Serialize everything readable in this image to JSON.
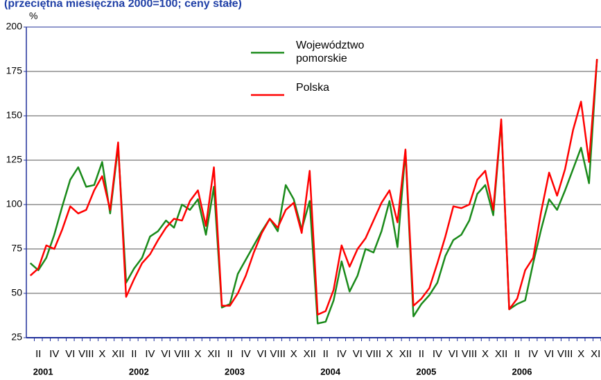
{
  "chart_data": {
    "type": "line",
    "title": "(przeciętna miesięczna 2000=100; ceny stałe)",
    "y_label": "%",
    "categories": [
      null,
      "II",
      null,
      "IV",
      null,
      "VI",
      null,
      "VIII",
      null,
      "X",
      null,
      "XII",
      null,
      "II",
      null,
      "IV",
      null,
      "VI",
      null,
      "VIII",
      null,
      "X",
      null,
      "XII",
      null,
      "II",
      null,
      "IV",
      null,
      "VI",
      null,
      "VIII",
      null,
      "X",
      null,
      "XII",
      null,
      "II",
      null,
      "IV",
      null,
      "VI",
      null,
      "VIII",
      null,
      "X",
      null,
      "XII",
      null,
      "II",
      null,
      "IV",
      null,
      "VI",
      null,
      "VIII",
      null,
      "X",
      null,
      "XII",
      null,
      "II",
      null,
      "IV",
      null,
      "VI",
      null,
      "VIII",
      null,
      "X",
      null,
      "XII"
    ],
    "years": [
      "2001",
      "2002",
      "2003",
      "2004",
      "2005",
      "2006"
    ],
    "series": [
      {
        "name": "Województwo pomorskie",
        "color": "#1a8a1a",
        "values": [
          67,
          63,
          70,
          83,
          99,
          114,
          121,
          110,
          111,
          124,
          95,
          133,
          56,
          64,
          70,
          82,
          85,
          91,
          87,
          100,
          97,
          103,
          83,
          110,
          42,
          44,
          61,
          69,
          77,
          85,
          92,
          85,
          111,
          103,
          86,
          102,
          33,
          34,
          46,
          68,
          51,
          60,
          75,
          73,
          85,
          102,
          76,
          130,
          37,
          44,
          49,
          56,
          71,
          80,
          83,
          91,
          106,
          111,
          94,
          147,
          41,
          44,
          46,
          67,
          86,
          103,
          97,
          108,
          120,
          132,
          112,
          182
        ]
      },
      {
        "name": "Polska",
        "color": "#ff0000",
        "values": [
          60,
          64,
          77,
          75,
          86,
          99,
          95,
          97,
          108,
          116,
          97,
          135,
          48,
          58,
          67,
          72,
          80,
          87,
          92,
          91,
          102,
          108,
          88,
          121,
          43,
          43,
          50,
          60,
          73,
          84,
          92,
          87,
          97,
          101,
          84,
          119,
          38,
          40,
          52,
          77,
          65,
          75,
          81,
          91,
          101,
          108,
          90,
          131,
          43,
          47,
          53,
          67,
          82,
          99,
          98,
          100,
          114,
          119,
          97,
          148,
          41,
          47,
          63,
          70,
          96,
          118,
          105,
          120,
          142,
          158,
          124,
          182
        ]
      }
    ],
    "ylim": [
      25,
      200
    ],
    "yticks": [
      25,
      50,
      75,
      100,
      125,
      150,
      175,
      200
    ],
    "grid": true
  }
}
